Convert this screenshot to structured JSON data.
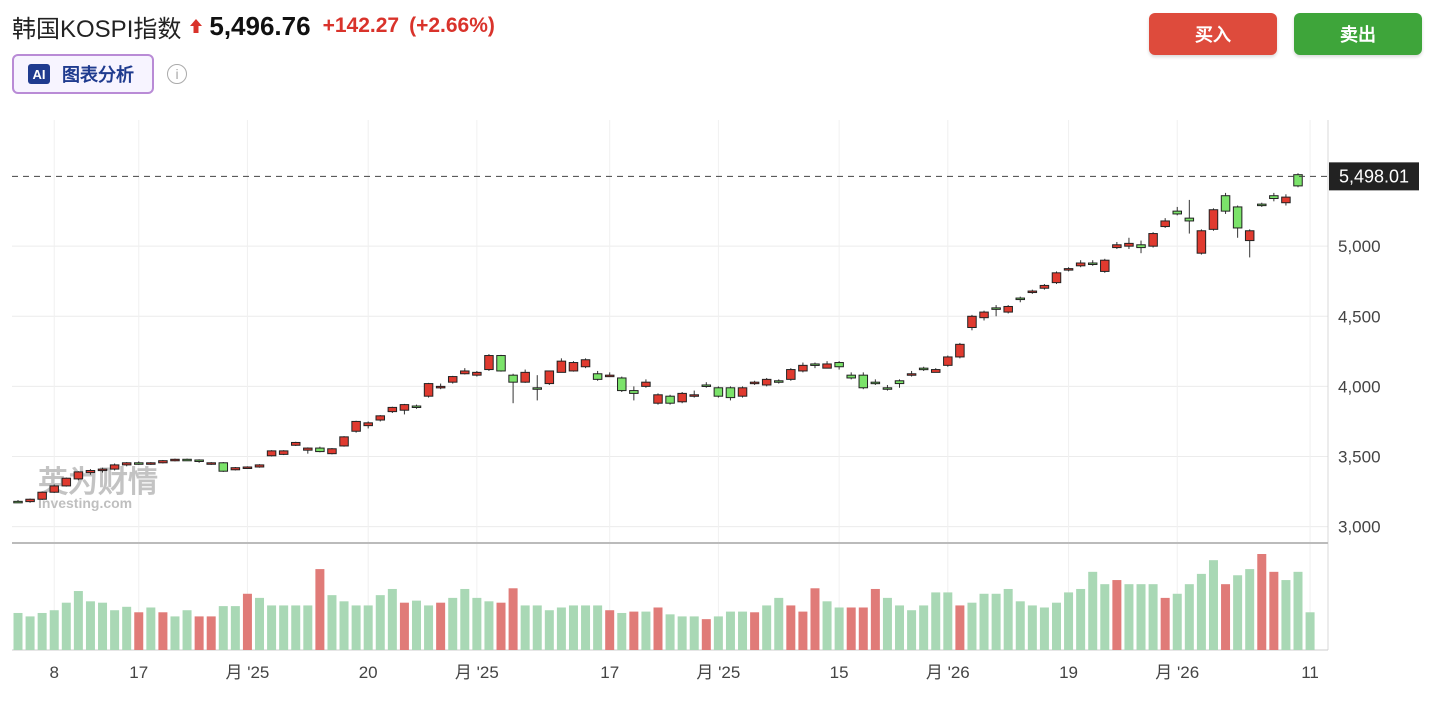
{
  "header": {
    "title": "韩国KOSPI指数",
    "price": "5,496.76",
    "change": "+142.27",
    "change_pct": "(+2.66%)"
  },
  "buttons": {
    "buy": "买入",
    "sell": "卖出",
    "ai_badge": "AI",
    "ai_label": "图表分析",
    "info": "i"
  },
  "colors": {
    "up": "#e03a2f",
    "down": "#7be36a",
    "vol_up": "#e07b78",
    "vol_down": "#a9d8b5",
    "buy": "#de4b3c",
    "sell": "#3ea53a"
  },
  "watermark": {
    "line1": "英为财情",
    "line2": "Investing.com"
  },
  "chart_data": {
    "type": "candlestick",
    "last_price_label": "5,498.01",
    "last_price": 5498.01,
    "y_ticks": [
      3000,
      3500,
      4000,
      4500,
      5000
    ],
    "y_tick_labels": [
      "3,000",
      "3,500",
      "4,000",
      "4,500",
      "5,000"
    ],
    "ylim": [
      2890,
      5900
    ],
    "x_tick_labels": [
      "8",
      "17",
      "月 '25",
      "20",
      "月 '25",
      "17",
      "月 '25",
      "15",
      "月 '26",
      "19",
      "月 '26",
      "11"
    ],
    "x_tick_index": [
      3,
      10,
      19,
      29,
      38,
      49,
      58,
      68,
      77,
      87,
      96,
      107
    ],
    "candles": [
      [
        3180,
        3175,
        3190,
        3170
      ],
      [
        3178,
        3195,
        3200,
        3170
      ],
      [
        3195,
        3245,
        3250,
        3190
      ],
      [
        3245,
        3290,
        3300,
        3240
      ],
      [
        3290,
        3345,
        3350,
        3285
      ],
      [
        3340,
        3390,
        3395,
        3330
      ],
      [
        3385,
        3400,
        3410,
        3370
      ],
      [
        3400,
        3410,
        3420,
        3385
      ],
      [
        3410,
        3440,
        3450,
        3400
      ],
      [
        3440,
        3455,
        3460,
        3430
      ],
      [
        3455,
        3445,
        3465,
        3440
      ],
      [
        3445,
        3455,
        3460,
        3440
      ],
      [
        3455,
        3470,
        3475,
        3450
      ],
      [
        3470,
        3480,
        3485,
        3465
      ],
      [
        3480,
        3480,
        3485,
        3470
      ],
      [
        3475,
        3465,
        3480,
        3455
      ],
      [
        3445,
        3455,
        3460,
        3440
      ],
      [
        3455,
        3395,
        3460,
        3390
      ],
      [
        3405,
        3420,
        3425,
        3400
      ],
      [
        3420,
        3425,
        3430,
        3415
      ],
      [
        3425,
        3440,
        3445,
        3420
      ],
      [
        3505,
        3540,
        3545,
        3500
      ],
      [
        3515,
        3540,
        3545,
        3510
      ],
      [
        3580,
        3600,
        3605,
        3575
      ],
      [
        3545,
        3560,
        3565,
        3520
      ],
      [
        3560,
        3535,
        3570,
        3530
      ],
      [
        3520,
        3555,
        3560,
        3515
      ],
      [
        3575,
        3640,
        3645,
        3570
      ],
      [
        3680,
        3750,
        3755,
        3670
      ],
      [
        3720,
        3740,
        3750,
        3700
      ],
      [
        3760,
        3790,
        3795,
        3750
      ],
      [
        3820,
        3850,
        3855,
        3810
      ],
      [
        3830,
        3870,
        3875,
        3800
      ],
      [
        3860,
        3850,
        3870,
        3840
      ],
      [
        3930,
        4020,
        4025,
        3920
      ],
      [
        3990,
        4000,
        4020,
        3980
      ],
      [
        4030,
        4070,
        4075,
        4020
      ],
      [
        4090,
        4110,
        4130,
        4085
      ],
      [
        4080,
        4100,
        4110,
        4070
      ],
      [
        4120,
        4220,
        4230,
        4110
      ],
      [
        4220,
        4110,
        4225,
        4105
      ],
      [
        4080,
        4030,
        4090,
        3880
      ],
      [
        4030,
        4100,
        4120,
        4025
      ],
      [
        3990,
        3990,
        4080,
        3900
      ],
      [
        4020,
        4110,
        4110,
        4010
      ],
      [
        4100,
        4180,
        4200,
        4100
      ],
      [
        4110,
        4170,
        4180,
        4105
      ],
      [
        4140,
        4190,
        4200,
        4130
      ],
      [
        4090,
        4050,
        4110,
        4040
      ],
      [
        4070,
        4080,
        4100,
        4070
      ],
      [
        4060,
        3970,
        4070,
        3960
      ],
      [
        3970,
        3950,
        4000,
        3900
      ],
      [
        4000,
        4030,
        4050,
        3990
      ],
      [
        3880,
        3940,
        3950,
        3870
      ],
      [
        3930,
        3880,
        3940,
        3870
      ],
      [
        3890,
        3950,
        3960,
        3880
      ],
      [
        3930,
        3940,
        3970,
        3920
      ],
      [
        4010,
        4010,
        4030,
        3990
      ],
      [
        3990,
        3930,
        4000,
        3920
      ],
      [
        3990,
        3920,
        4000,
        3900
      ],
      [
        3930,
        3990,
        4000,
        3920
      ],
      [
        4020,
        4030,
        4040,
        4010
      ],
      [
        4010,
        4050,
        4060,
        4000
      ],
      [
        4040,
        4030,
        4050,
        4020
      ],
      [
        4050,
        4120,
        4130,
        4040
      ],
      [
        4110,
        4150,
        4170,
        4100
      ],
      [
        4160,
        4150,
        4170,
        4130
      ],
      [
        4130,
        4160,
        4180,
        4130
      ],
      [
        4170,
        4140,
        4180,
        4120
      ],
      [
        4080,
        4060,
        4100,
        4050
      ],
      [
        4080,
        3990,
        4100,
        3980
      ],
      [
        4030,
        4030,
        4050,
        4010
      ],
      [
        3990,
        3990,
        4010,
        3970
      ],
      [
        4040,
        4020,
        4050,
        3990
      ],
      [
        4080,
        4090,
        4110,
        4070
      ],
      [
        4130,
        4120,
        4140,
        4110
      ],
      [
        4100,
        4120,
        4130,
        4100
      ],
      [
        4150,
        4210,
        4220,
        4140
      ],
      [
        4210,
        4300,
        4310,
        4200
      ],
      [
        4420,
        4500,
        4510,
        4400
      ],
      [
        4490,
        4530,
        4540,
        4470
      ],
      [
        4560,
        4550,
        4580,
        4500
      ],
      [
        4530,
        4570,
        4580,
        4520
      ],
      [
        4630,
        4620,
        4640,
        4600
      ],
      [
        4670,
        4680,
        4690,
        4660
      ],
      [
        4700,
        4720,
        4730,
        4690
      ],
      [
        4740,
        4810,
        4820,
        4730
      ],
      [
        4830,
        4840,
        4850,
        4820
      ],
      [
        4860,
        4880,
        4900,
        4850
      ],
      [
        4880,
        4870,
        4900,
        4860
      ],
      [
        4820,
        4900,
        4910,
        4810
      ],
      [
        4990,
        5010,
        5030,
        4980
      ],
      [
        5000,
        5020,
        5060,
        4980
      ],
      [
        5010,
        4990,
        5040,
        4950
      ],
      [
        5000,
        5090,
        5100,
        4990
      ],
      [
        5140,
        5180,
        5200,
        5130
      ],
      [
        5250,
        5230,
        5280,
        5220
      ],
      [
        5200,
        5180,
        5330,
        5090
      ],
      [
        4950,
        5110,
        5120,
        4940
      ],
      [
        5120,
        5260,
        5270,
        5110
      ],
      [
        5360,
        5250,
        5380,
        5230
      ],
      [
        5280,
        5130,
        5290,
        5060
      ],
      [
        5040,
        5110,
        5120,
        4920
      ],
      [
        5300,
        5290,
        5310,
        5280
      ],
      [
        5360,
        5340,
        5380,
        5320
      ],
      [
        5310,
        5350,
        5370,
        5290
      ],
      [
        5510,
        5430,
        5520,
        5420
      ]
    ],
    "volume": [
      [
        0.54,
        "d"
      ],
      [
        0.49,
        "d"
      ],
      [
        0.54,
        "d"
      ],
      [
        0.58,
        "d"
      ],
      [
        0.69,
        "d"
      ],
      [
        0.86,
        "d"
      ],
      [
        0.71,
        "d"
      ],
      [
        0.69,
        "d"
      ],
      [
        0.58,
        "d"
      ],
      [
        0.63,
        "d"
      ],
      [
        0.55,
        "u"
      ],
      [
        0.62,
        "d"
      ],
      [
        0.55,
        "u"
      ],
      [
        0.49,
        "d"
      ],
      [
        0.58,
        "d"
      ],
      [
        0.49,
        "u"
      ],
      [
        0.49,
        "u"
      ],
      [
        0.64,
        "d"
      ],
      [
        0.64,
        "d"
      ],
      [
        0.82,
        "u"
      ],
      [
        0.76,
        "d"
      ],
      [
        0.65,
        "d"
      ],
      [
        0.65,
        "d"
      ],
      [
        0.65,
        "d"
      ],
      [
        0.65,
        "d"
      ],
      [
        1.18,
        "u"
      ],
      [
        0.8,
        "d"
      ],
      [
        0.71,
        "d"
      ],
      [
        0.65,
        "d"
      ],
      [
        0.65,
        "d"
      ],
      [
        0.8,
        "d"
      ],
      [
        0.89,
        "d"
      ],
      [
        0.69,
        "u"
      ],
      [
        0.72,
        "d"
      ],
      [
        0.65,
        "d"
      ],
      [
        0.69,
        "u"
      ],
      [
        0.76,
        "d"
      ],
      [
        0.89,
        "d"
      ],
      [
        0.76,
        "d"
      ],
      [
        0.71,
        "d"
      ],
      [
        0.69,
        "u"
      ],
      [
        0.9,
        "u"
      ],
      [
        0.65,
        "d"
      ],
      [
        0.65,
        "d"
      ],
      [
        0.58,
        "d"
      ],
      [
        0.62,
        "d"
      ],
      [
        0.65,
        "d"
      ],
      [
        0.65,
        "d"
      ],
      [
        0.65,
        "d"
      ],
      [
        0.58,
        "u"
      ],
      [
        0.54,
        "d"
      ],
      [
        0.56,
        "u"
      ],
      [
        0.56,
        "d"
      ],
      [
        0.62,
        "u"
      ],
      [
        0.52,
        "d"
      ],
      [
        0.49,
        "d"
      ],
      [
        0.49,
        "d"
      ],
      [
        0.45,
        "u"
      ],
      [
        0.49,
        "d"
      ],
      [
        0.56,
        "d"
      ],
      [
        0.56,
        "d"
      ],
      [
        0.55,
        "u"
      ],
      [
        0.65,
        "d"
      ],
      [
        0.76,
        "d"
      ],
      [
        0.65,
        "u"
      ],
      [
        0.56,
        "u"
      ],
      [
        0.9,
        "u"
      ],
      [
        0.71,
        "d"
      ],
      [
        0.62,
        "d"
      ],
      [
        0.62,
        "u"
      ],
      [
        0.62,
        "u"
      ],
      [
        0.89,
        "u"
      ],
      [
        0.76,
        "d"
      ],
      [
        0.65,
        "d"
      ],
      [
        0.58,
        "d"
      ],
      [
        0.65,
        "d"
      ],
      [
        0.84,
        "d"
      ],
      [
        0.84,
        "d"
      ],
      [
        0.65,
        "u"
      ],
      [
        0.69,
        "d"
      ],
      [
        0.82,
        "d"
      ],
      [
        0.82,
        "d"
      ],
      [
        0.89,
        "d"
      ],
      [
        0.71,
        "d"
      ],
      [
        0.65,
        "d"
      ],
      [
        0.62,
        "d"
      ],
      [
        0.69,
        "d"
      ],
      [
        0.84,
        "d"
      ],
      [
        0.89,
        "d"
      ],
      [
        1.14,
        "d"
      ],
      [
        0.96,
        "d"
      ],
      [
        1.02,
        "u"
      ],
      [
        0.96,
        "d"
      ],
      [
        0.96,
        "d"
      ],
      [
        0.96,
        "d"
      ],
      [
        0.76,
        "u"
      ],
      [
        0.82,
        "d"
      ],
      [
        0.96,
        "d"
      ],
      [
        1.11,
        "d"
      ],
      [
        1.31,
        "d"
      ],
      [
        0.96,
        "u"
      ],
      [
        1.09,
        "d"
      ],
      [
        1.18,
        "d"
      ],
      [
        1.4,
        "u"
      ],
      [
        1.14,
        "u"
      ],
      [
        1.02,
        "d"
      ],
      [
        1.14,
        "d"
      ],
      [
        0.55,
        "d"
      ]
    ]
  }
}
